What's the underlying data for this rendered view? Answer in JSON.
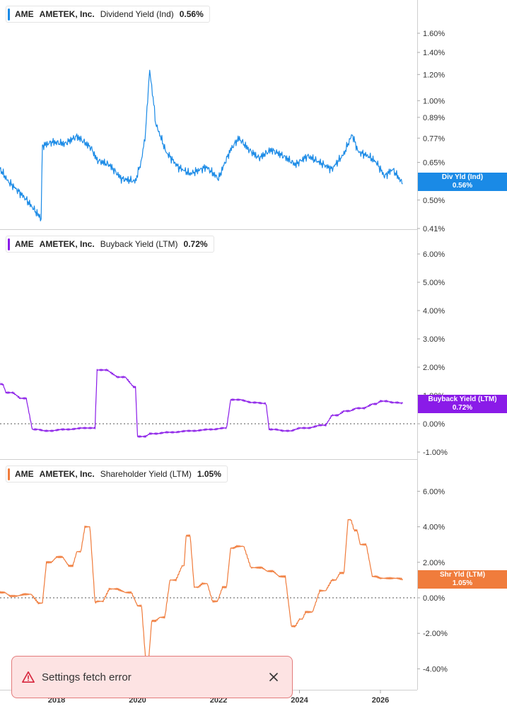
{
  "x_axis": {
    "ticks": [
      "2018",
      "2020",
      "2022",
      "2024",
      "2026"
    ]
  },
  "panels": [
    {
      "legend": {
        "ticker": "AME",
        "name": "AMETEK, Inc.",
        "metric": "Dividend Yield (Ind)",
        "value": "0.56%"
      },
      "tag": {
        "line1": "Div Yld (Ind)",
        "line2": "0.56%"
      },
      "color": "#1a8ae6"
    },
    {
      "legend": {
        "ticker": "AME",
        "name": "AMETEK, Inc.",
        "metric": "Buyback Yield (LTM)",
        "value": "0.72%"
      },
      "tag": {
        "line1": "Buyback Yield (LTM)",
        "line2": "0.72%"
      },
      "color": "#8a1be8"
    },
    {
      "legend": {
        "ticker": "AME",
        "name": "AMETEK, Inc.",
        "metric": "Shareholder Yield (LTM)",
        "value": "1.05%"
      },
      "tag": {
        "line1": "Shr Yld (LTM)",
        "line2": "1.05%"
      },
      "color": "#f07c3c"
    }
  ],
  "toast": {
    "message": "Settings fetch error",
    "icon": "warning-icon",
    "close_icon": "close-icon"
  },
  "chart_data": [
    {
      "type": "line",
      "series": [
        {
          "name": "Dividend Yield (Ind)",
          "x": [
            2016.0,
            2016.2,
            2016.45,
            2016.8,
            2017.2,
            2017.55,
            2017.62,
            2017.65,
            2017.9,
            2018.2,
            2018.5,
            2018.85,
            2019.0,
            2019.3,
            2019.6,
            2019.95,
            2020.1,
            2020.2,
            2020.3,
            2020.45,
            2020.7,
            2021.0,
            2021.3,
            2021.7,
            2022.0,
            2022.3,
            2022.5,
            2022.75,
            2023.0,
            2023.3,
            2023.6,
            2023.9,
            2024.2,
            2024.5,
            2024.8,
            2025.1,
            2025.3,
            2025.45,
            2025.7,
            2025.9,
            2026.1,
            2026.3,
            2026.55
          ],
          "y": [
            0.7,
            0.74,
            0.66,
            0.57,
            0.51,
            0.45,
            0.44,
            0.73,
            0.75,
            0.74,
            0.78,
            0.72,
            0.66,
            0.64,
            0.58,
            0.57,
            0.66,
            0.8,
            1.23,
            0.85,
            0.7,
            0.63,
            0.6,
            0.63,
            0.58,
            0.71,
            0.77,
            0.71,
            0.67,
            0.71,
            0.68,
            0.64,
            0.68,
            0.65,
            0.62,
            0.69,
            0.79,
            0.7,
            0.68,
            0.65,
            0.59,
            0.62,
            0.56
          ]
        }
      ],
      "y_ticks": [
        "1.60%",
        "1.40%",
        "1.20%",
        "1.00%",
        "0.89%",
        "0.77%",
        "0.65%",
        "0.50%",
        "0.41%"
      ],
      "scale": "log"
    },
    {
      "type": "line",
      "series": [
        {
          "name": "Buyback Yield (LTM)",
          "x": [
            2016.0,
            2016.2,
            2016.25,
            2016.45,
            2016.6,
            2016.75,
            2017.1,
            2017.4,
            2017.7,
            2018.1,
            2018.6,
            2018.9,
            2019.0,
            2019.5,
            2019.9,
            2020.0,
            2020.1,
            2020.3,
            2020.7,
            2021.2,
            2021.7,
            2022.1,
            2022.3,
            2022.8,
            2023.1,
            2023.25,
            2023.6,
            2024.0,
            2024.5,
            2024.8,
            2025.1,
            2025.4,
            2025.8,
            2026.0,
            2026.3,
            2026.55
          ],
          "y": [
            4.4,
            4.8,
            3.3,
            2.6,
            1.4,
            1.1,
            0.9,
            -0.2,
            -0.25,
            -0.2,
            -0.15,
            -0.15,
            1.9,
            1.65,
            1.3,
            -0.45,
            -0.45,
            -0.35,
            -0.3,
            -0.25,
            -0.2,
            -0.15,
            0.85,
            0.75,
            0.72,
            -0.2,
            -0.25,
            -0.15,
            -0.05,
            0.3,
            0.45,
            0.55,
            0.7,
            0.8,
            0.75,
            0.72
          ]
        }
      ],
      "y_ticks": [
        "6.00%",
        "5.00%",
        "4.00%",
        "3.00%",
        "2.00%",
        "1.00%",
        "0.00%",
        "-1.00%"
      ]
    },
    {
      "type": "line",
      "series": [
        {
          "name": "Shareholder Yield (LTM)",
          "x": [
            2016.0,
            2016.25,
            2016.4,
            2016.6,
            2016.85,
            2017.2,
            2017.55,
            2017.75,
            2018.0,
            2018.3,
            2018.5,
            2018.7,
            2018.95,
            2019.0,
            2019.3,
            2019.7,
            2020.0,
            2020.2,
            2020.35,
            2020.55,
            2020.8,
            2021.1,
            2021.2,
            2021.4,
            2021.6,
            2021.85,
            2022.1,
            2022.3,
            2022.45,
            2022.8,
            2022.95,
            2023.2,
            2023.5,
            2023.8,
            2024.0,
            2024.15,
            2024.5,
            2024.8,
            2025.0,
            2025.2,
            2025.35,
            2025.5,
            2025.8,
            2026.0,
            2026.3,
            2026.55
          ],
          "y": [
            0.6,
            1.5,
            2.2,
            0.3,
            0.1,
            0.2,
            -0.3,
            2.0,
            2.3,
            1.8,
            2.6,
            4.0,
            -0.25,
            -0.2,
            0.5,
            0.3,
            -0.45,
            -3.5,
            -1.3,
            -1.1,
            1.0,
            1.8,
            3.5,
            0.6,
            0.8,
            -0.2,
            0.6,
            2.8,
            2.9,
            1.7,
            1.7,
            1.5,
            1.2,
            -1.6,
            -1.2,
            -0.8,
            0.4,
            1.0,
            1.4,
            4.4,
            3.8,
            3.0,
            1.2,
            1.1,
            1.1,
            1.05
          ]
        }
      ],
      "y_ticks": [
        "6.00%",
        "4.00%",
        "2.00%",
        "0.00%",
        "-2.00%",
        "-4.00%"
      ]
    }
  ]
}
